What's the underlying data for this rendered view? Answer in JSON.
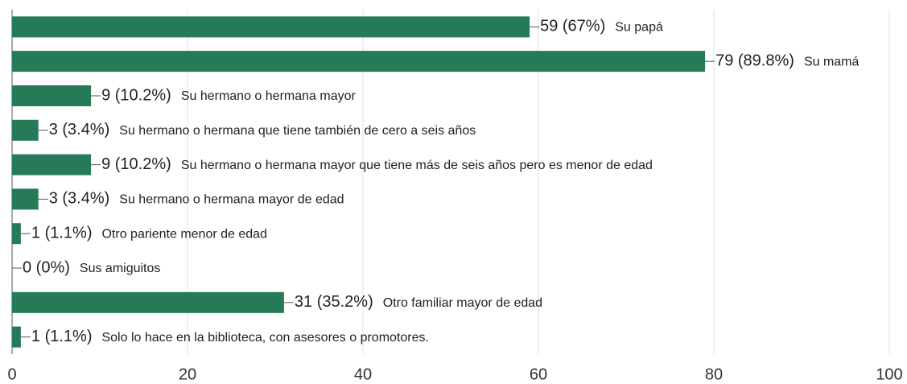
{
  "chart_data": {
    "type": "bar",
    "orientation": "horizontal",
    "categories": [
      "Su papá",
      "Su mamá",
      "Su hermano o hermana mayor",
      "Su hermano o hermana que tiene también de cero a seis años",
      "Su hermano o hermana mayor que tiene más de seis años pero es menor de edad",
      "Su hermano o hermana mayor de edad",
      "Otro pariente menor de edad",
      "Sus amiguitos",
      "Otro familiar mayor de edad",
      "Solo lo hace en la biblioteca, con asesores o promotores."
    ],
    "values": [
      59,
      79,
      9,
      3,
      9,
      3,
      1,
      0,
      31,
      1
    ],
    "value_labels": [
      "59 (67%)",
      "79 (89.8%)",
      "9 (10.2%)",
      "3 (3.4%)",
      "9 (10.2%)",
      "3 (3.4%)",
      "1 (1.1%)",
      "0 (0%)",
      "31 (35.2%)",
      "1 (1.1%)"
    ],
    "color": "#277a57",
    "xlim": [
      0,
      100
    ],
    "xticks": [
      0,
      20,
      40,
      60,
      80,
      100
    ],
    "grid": true
  }
}
